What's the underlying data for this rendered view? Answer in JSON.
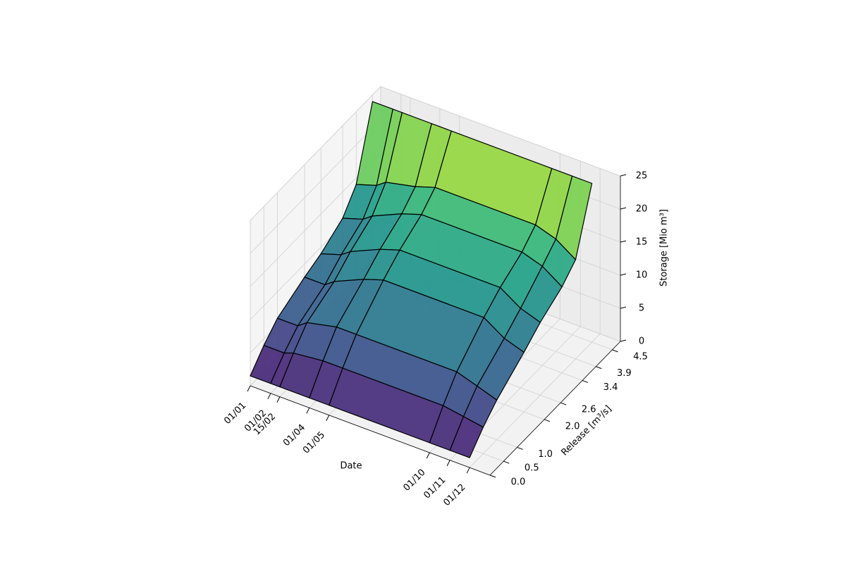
{
  "chart_data": {
    "type": "surface3d",
    "xlabel": "Date",
    "ylabel": "Release [m³/s]",
    "zlabel": "Storage [Mio m³]",
    "x": [
      0,
      31,
      45,
      90,
      120,
      273,
      304,
      334
    ],
    "y": [
      0,
      0.5,
      1.0,
      2.0,
      2.6,
      3.4,
      3.9,
      4.5
    ],
    "z": [
      [
        1.5,
        1.5,
        1.5,
        1.5,
        1.5,
        1.5,
        1.5,
        1.5
      ],
      [
        4,
        4,
        4.5,
        5,
        5,
        5,
        4.5,
        4
      ],
      [
        6,
        6,
        7,
        8,
        8,
        8,
        7,
        6
      ],
      [
        8,
        8,
        9,
        11,
        12,
        12,
        10,
        9
      ],
      [
        9,
        10,
        11,
        13,
        14,
        14,
        12,
        11
      ],
      [
        11,
        12,
        13,
        15,
        16,
        16,
        15,
        13
      ],
      [
        14,
        15,
        16,
        17,
        18,
        18,
        17,
        15
      ],
      [
        24,
        24,
        24,
        24,
        24,
        24,
        24,
        24
      ]
    ],
    "xlim": [
      0,
      365
    ],
    "ylim": [
      0,
      4.8
    ],
    "zlim": [
      0,
      25
    ],
    "xticks": [
      {
        "value": 0,
        "label": "01/01"
      },
      {
        "value": 31,
        "label": "01/02"
      },
      {
        "value": 45,
        "label": "15/02"
      },
      {
        "value": 90,
        "label": "01/04"
      },
      {
        "value": 120,
        "label": "01/05"
      },
      {
        "value": 273,
        "label": "01/10"
      },
      {
        "value": 304,
        "label": "01/11"
      },
      {
        "value": 334,
        "label": "01/12"
      }
    ],
    "yticks": [
      {
        "value": 0,
        "label": "0.0"
      },
      0.5,
      {
        "value": 1,
        "label": "1.0"
      },
      {
        "value": 2,
        "label": "2.0"
      },
      2.6,
      3.4,
      3.9,
      4.5
    ],
    "zticks": [
      0,
      5,
      10,
      15,
      20,
      25
    ],
    "colormap": "viridis",
    "edgecolor": "#000000",
    "grid": true
  }
}
